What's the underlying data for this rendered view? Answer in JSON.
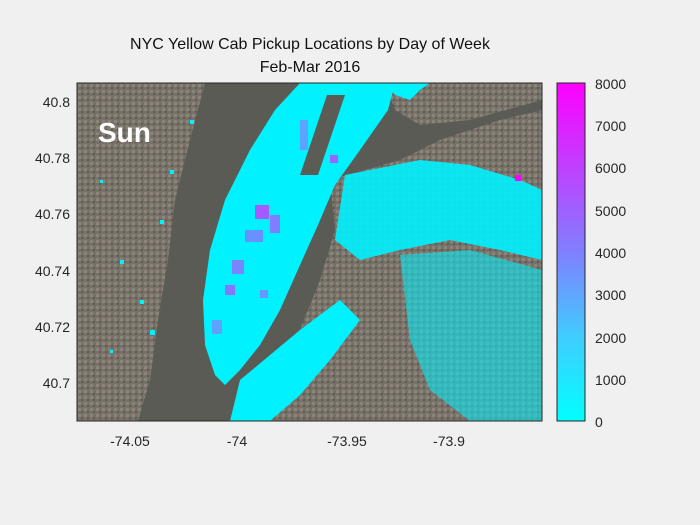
{
  "title_line1": "NYC Yellow Cab Pickup Locations by Day of Week",
  "title_line2": "Feb-Mar 2016",
  "day_label": "Sun",
  "map": {
    "x_ticks": [
      "-74.05",
      "-74",
      "-73.95",
      "-73.9"
    ],
    "y_ticks": [
      "40.8",
      "40.78",
      "40.76",
      "40.74",
      "40.72",
      "40.7"
    ],
    "colors": {
      "water": "#5a5c55",
      "land": "#6f6a60",
      "low_density": "#00f2ff",
      "high_density": "#ff00ff"
    }
  },
  "colorbar": {
    "tick_labels": [
      "8000",
      "7000",
      "6000",
      "5000",
      "4000",
      "3000",
      "2000",
      "1000",
      "0"
    ],
    "min": 0,
    "max": 8000,
    "color_low": "#00ffff",
    "color_high": "#ff00ff"
  }
}
